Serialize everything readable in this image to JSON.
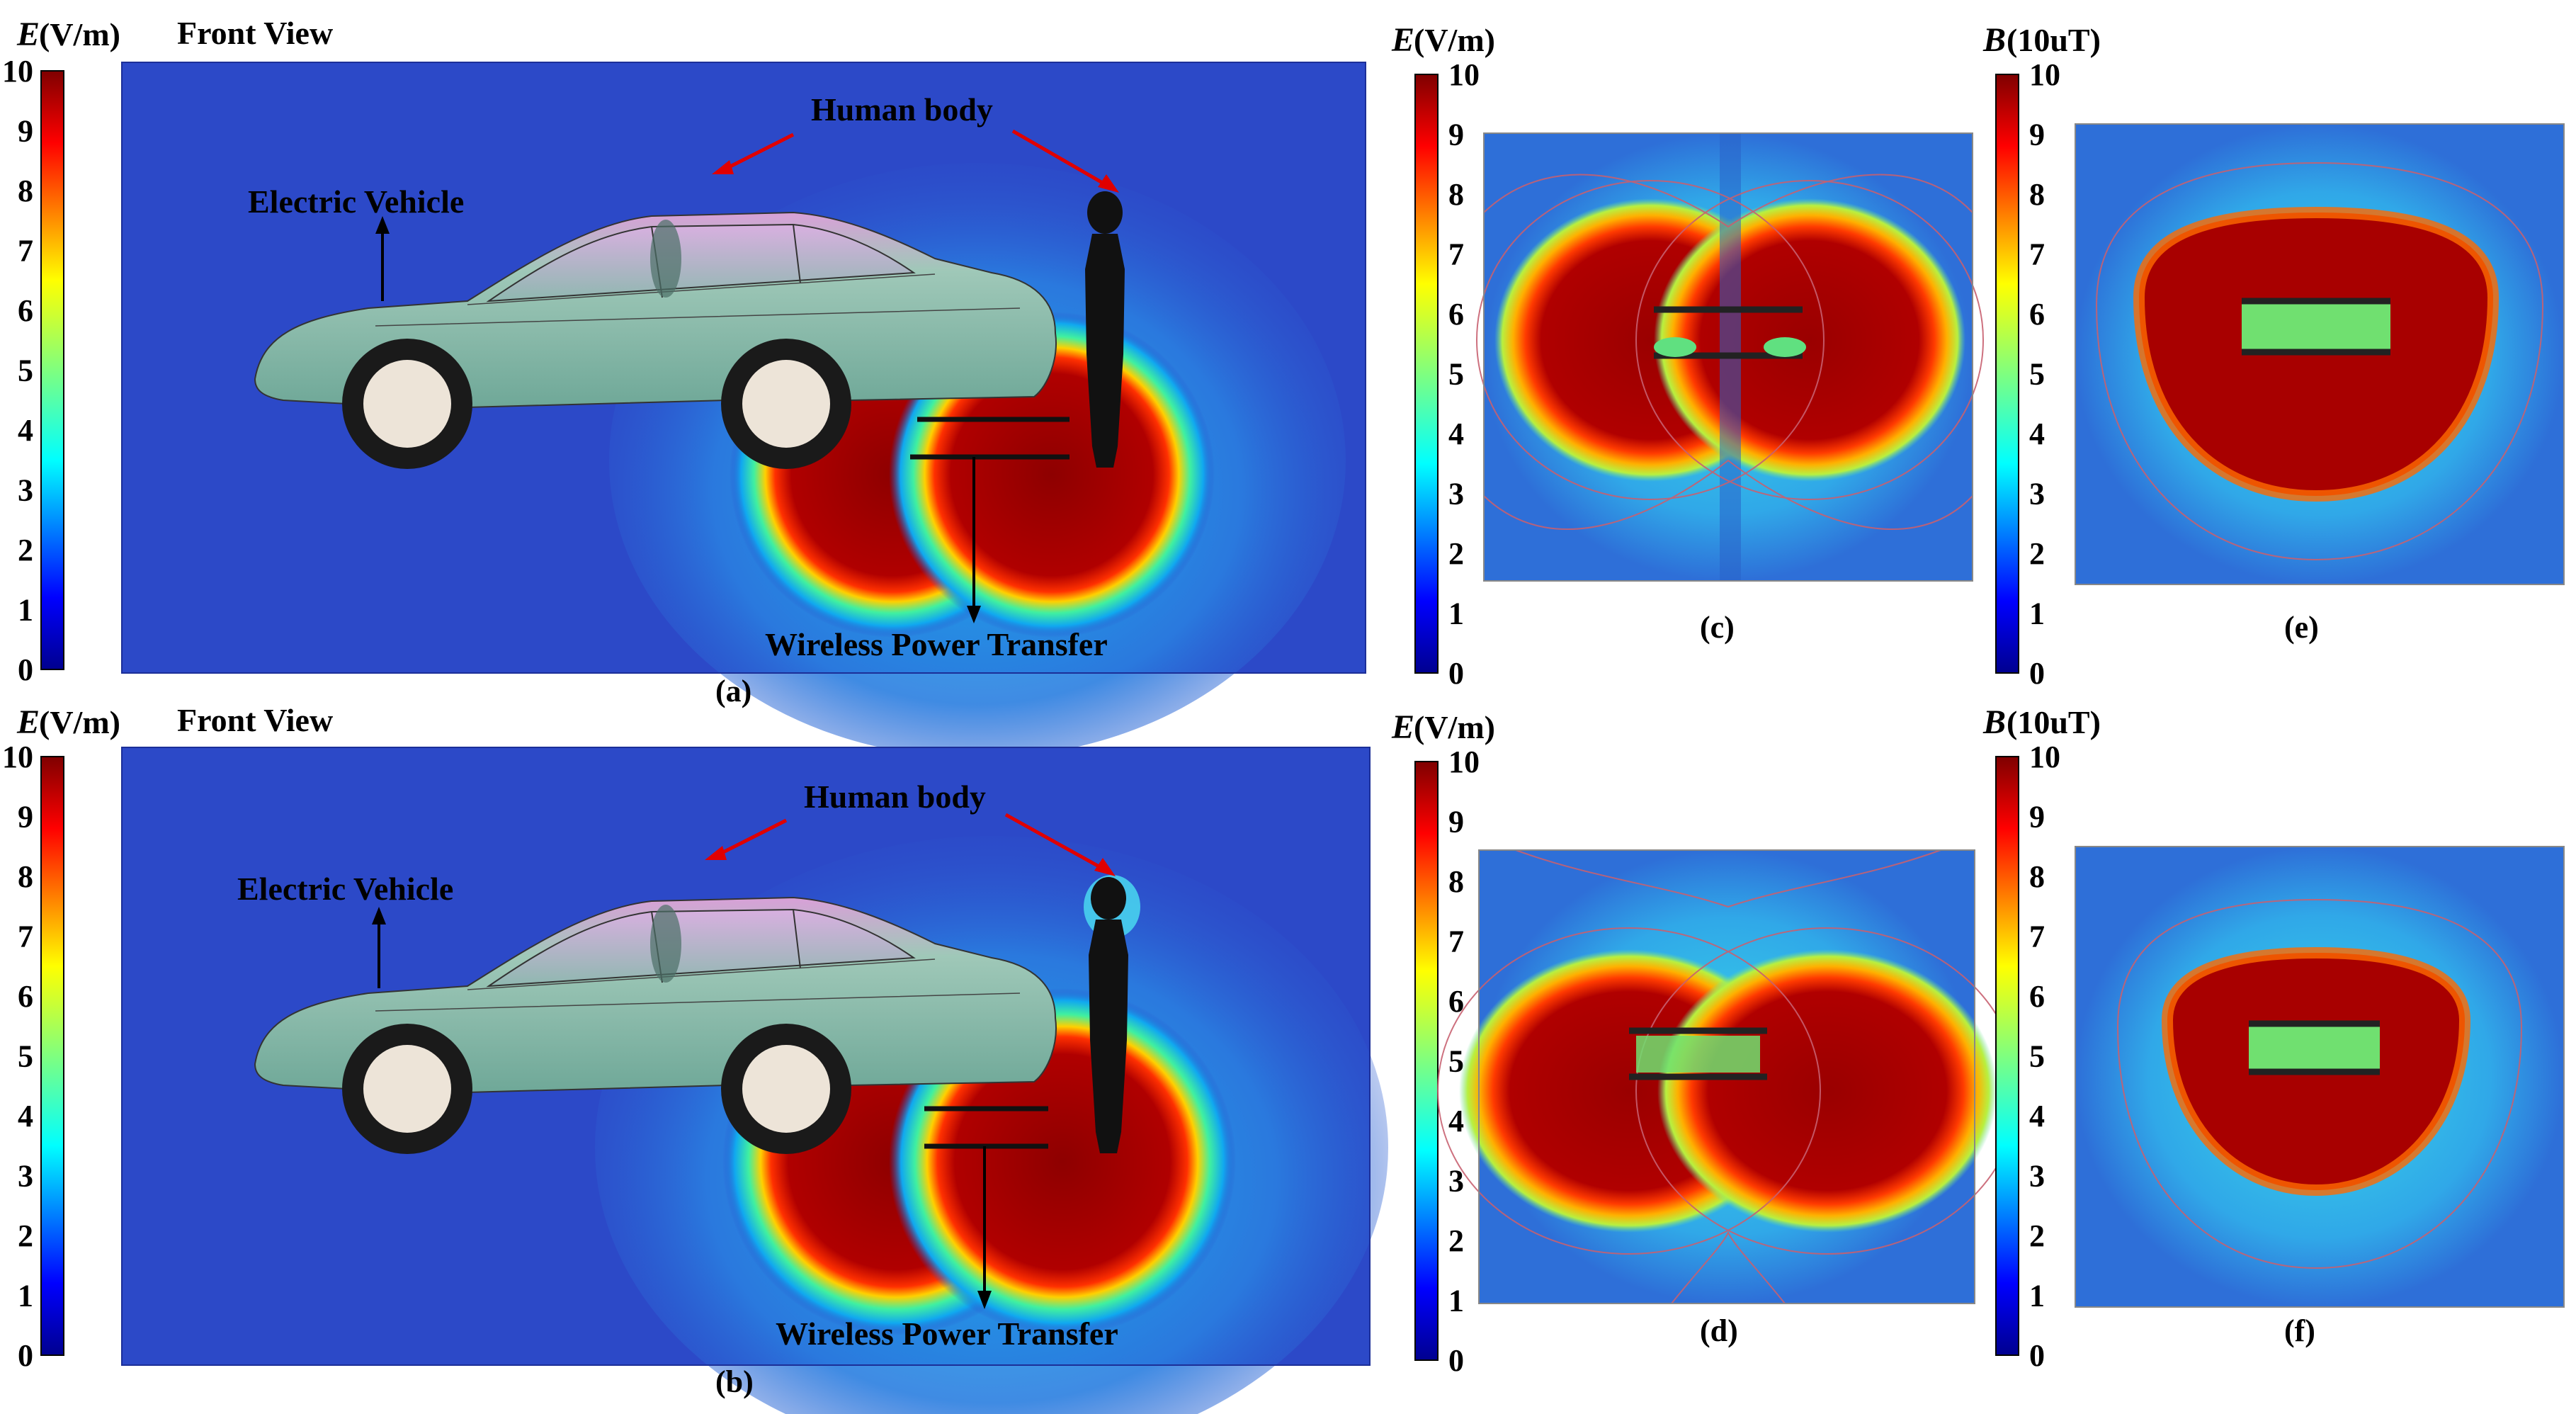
{
  "panels": {
    "a": {
      "label": "(a)",
      "view_title": "Front View",
      "scale_var": "E",
      "scale_unit": "(V/m)",
      "ticks": [
        "0",
        "1",
        "2",
        "3",
        "4",
        "5",
        "6",
        "7",
        "8",
        "9",
        "10"
      ],
      "annot_human": "Human body",
      "annot_vehicle": "Electric Vehicle",
      "annot_wpt": "Wireless Power Transfer"
    },
    "b": {
      "label": "(b)",
      "view_title": "Front View",
      "scale_var": "E",
      "scale_unit": "(V/m)",
      "ticks": [
        "0",
        "1",
        "2",
        "3",
        "4",
        "5",
        "6",
        "7",
        "8",
        "9",
        "10"
      ],
      "annot_human": "Human body",
      "annot_vehicle": "Electric Vehicle",
      "annot_wpt": "Wireless Power Transfer"
    },
    "c": {
      "label": "(c)",
      "scale_var": "E",
      "scale_unit": "(V/m)",
      "ticks": [
        "0",
        "1",
        "2",
        "3",
        "4",
        "5",
        "6",
        "7",
        "8",
        "9",
        "10"
      ]
    },
    "d": {
      "label": "(d)",
      "scale_var": "E",
      "scale_unit": "(V/m)",
      "ticks": [
        "0",
        "1",
        "2",
        "3",
        "4",
        "5",
        "6",
        "7",
        "8",
        "9",
        "10"
      ]
    },
    "e": {
      "label": "(e)",
      "scale_var": "B",
      "scale_unit": "(10uT)",
      "ticks": [
        "0",
        "1",
        "2",
        "3",
        "4",
        "5",
        "6",
        "7",
        "8",
        "9",
        "10"
      ]
    },
    "f": {
      "label": "(f)",
      "scale_var": "B",
      "scale_unit": "(10uT)",
      "ticks": [
        "0",
        "1",
        "2",
        "3",
        "4",
        "5",
        "6",
        "7",
        "8",
        "9",
        "10"
      ]
    }
  },
  "colors": {
    "background_field": "#2c49c8",
    "hot": "#9b0000",
    "annotation_arrow": "#e00000",
    "car_body": "#8fc4b4",
    "car_roof": "#e0a6dc",
    "contour": "#c86070"
  }
}
